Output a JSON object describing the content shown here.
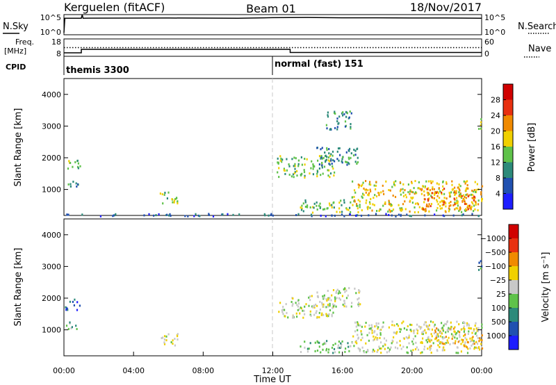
{
  "header": {
    "station": "Kerguelen (fitACF)",
    "beam": "Beam 01",
    "date": "18/Nov/2017"
  },
  "chart_data": [
    {
      "type": "line",
      "name": "noise-panel",
      "labels": {
        "left": "N.Sky",
        "right": "N.Search"
      },
      "left_ticks": [
        "10^5",
        "10^0"
      ],
      "right_ticks": [
        "10^5",
        "10^0"
      ],
      "xlim": [
        0,
        24
      ],
      "series": [
        {
          "name": "N.Sky",
          "style": "solid",
          "x": [
            0,
            0.05,
            0.1,
            1.0,
            1.05,
            1.1,
            6,
            10,
            12,
            14,
            16,
            18,
            20,
            22,
            24
          ],
          "y": [
            0.1,
            0.82,
            0.82,
            0.82,
            1.0,
            0.82,
            0.83,
            0.82,
            0.85,
            0.86,
            0.84,
            0.84,
            0.83,
            0.83,
            0.82
          ]
        }
      ]
    },
    {
      "type": "line",
      "name": "freq-panel",
      "labels": {
        "left": "Freq.",
        "left_unit": "[MHz]",
        "right": "Nave"
      },
      "left_ticks": [
        "18",
        "8"
      ],
      "right_ticks": [
        "60",
        "0"
      ],
      "xlim": [
        0,
        24
      ],
      "series": [
        {
          "name": "Freq.",
          "style": "solid",
          "x": [
            0,
            1.0,
            1.0,
            13.0,
            13.0,
            24
          ],
          "y": [
            10,
            10,
            12,
            12,
            10.2,
            10.2
          ]
        },
        {
          "name": "Nave",
          "style": "dotted",
          "x": [
            0,
            24
          ],
          "y": [
            13,
            13
          ]
        }
      ]
    },
    {
      "type": "table",
      "name": "cpid-panel",
      "label": "CPID",
      "segments": [
        {
          "start": 0,
          "label": "themis 3300"
        },
        {
          "start": 12,
          "label": "normal (fast) 151"
        }
      ]
    },
    {
      "type": "heatmap",
      "name": "power-panel",
      "ylabel": "Slant Range [km]",
      "ylim": [
        180,
        4500
      ],
      "yticks": [
        1000,
        2000,
        3000,
        4000
      ],
      "xlim": [
        0,
        24
      ],
      "colorbar": {
        "label": "Power [dB]",
        "ticks": [
          "4",
          "8",
          "12",
          "16",
          "20",
          "24",
          "28"
        ],
        "colors": [
          "#1d1dff",
          "#2050b0",
          "#2c8a7a",
          "#5fc24a",
          "#f0d000",
          "#f08a00",
          "#e83010",
          "#d00000"
        ]
      },
      "regions": [
        {
          "t": [
            0.05,
            0.9
          ],
          "r": [
            1650,
            2000
          ],
          "level": 3
        },
        {
          "t": [
            0.05,
            0.8
          ],
          "r": [
            1050,
            1300
          ],
          "level": 2
        },
        {
          "t": [
            0.0,
            24.0
          ],
          "r": [
            180,
            260
          ],
          "level": 1
        },
        {
          "t": [
            5.5,
            6.5
          ],
          "r": [
            500,
            950
          ],
          "level": 3
        },
        {
          "t": [
            12.2,
            15.5
          ],
          "r": [
            1400,
            2100
          ],
          "level": 3
        },
        {
          "t": [
            14.5,
            17.0
          ],
          "r": [
            1750,
            2350
          ],
          "level": 2
        },
        {
          "t": [
            13.5,
            16.5
          ],
          "r": [
            300,
            700
          ],
          "level": 3
        },
        {
          "t": [
            16.5,
            24.0
          ],
          "r": [
            300,
            1300
          ],
          "level": 4
        },
        {
          "t": [
            20.5,
            24.0
          ],
          "r": [
            400,
            1100
          ],
          "level": 5
        },
        {
          "t": [
            15.0,
            16.5
          ],
          "r": [
            2900,
            3500
          ],
          "level": 2
        },
        {
          "t": [
            23.7,
            24.0
          ],
          "r": [
            2900,
            3300
          ],
          "level": 3
        }
      ]
    },
    {
      "type": "heatmap",
      "name": "velocity-panel",
      "ylabel": "Slant Range [km]",
      "ylim": [
        180,
        4500
      ],
      "yticks": [
        1000,
        2000,
        3000,
        4000
      ],
      "xlim": [
        0,
        24
      ],
      "xticks": [
        "00:00",
        "04:00",
        "08:00",
        "12:00",
        "16:00",
        "20:00",
        "00:00"
      ],
      "xlabel": "Time UT",
      "colorbar": {
        "label": "Velocity [m s⁻¹]",
        "ticks": [
          "1000",
          "500",
          "100",
          "25",
          "−25",
          "−100",
          "−500",
          "−1000"
        ],
        "colors": [
          "#1d1dff",
          "#2050b0",
          "#2c8a7a",
          "#5fc24a",
          "#c8c8c8",
          "#f0d000",
          "#f08a00",
          "#e83010",
          "#d00000"
        ]
      },
      "regions": [
        {
          "t": [
            0.05,
            0.9
          ],
          "r": [
            1650,
            2000
          ],
          "level": 1
        },
        {
          "t": [
            0.05,
            0.8
          ],
          "r": [
            1050,
            1300
          ],
          "level": 3
        },
        {
          "t": [
            5.5,
            6.5
          ],
          "r": [
            500,
            950
          ],
          "level": 4
        },
        {
          "t": [
            12.2,
            15.5
          ],
          "r": [
            1400,
            2100
          ],
          "level": 4
        },
        {
          "t": [
            14.5,
            17.0
          ],
          "r": [
            1750,
            2350
          ],
          "level": 4
        },
        {
          "t": [
            13.5,
            16.5
          ],
          "r": [
            300,
            700
          ],
          "level": 3
        },
        {
          "t": [
            16.5,
            24.0
          ],
          "r": [
            300,
            1300
          ],
          "level": 4
        },
        {
          "t": [
            20.5,
            24.0
          ],
          "r": [
            400,
            1100
          ],
          "level": 5
        },
        {
          "t": [
            23.7,
            24.0
          ],
          "r": [
            2900,
            3300
          ],
          "level": 2
        }
      ]
    }
  ]
}
